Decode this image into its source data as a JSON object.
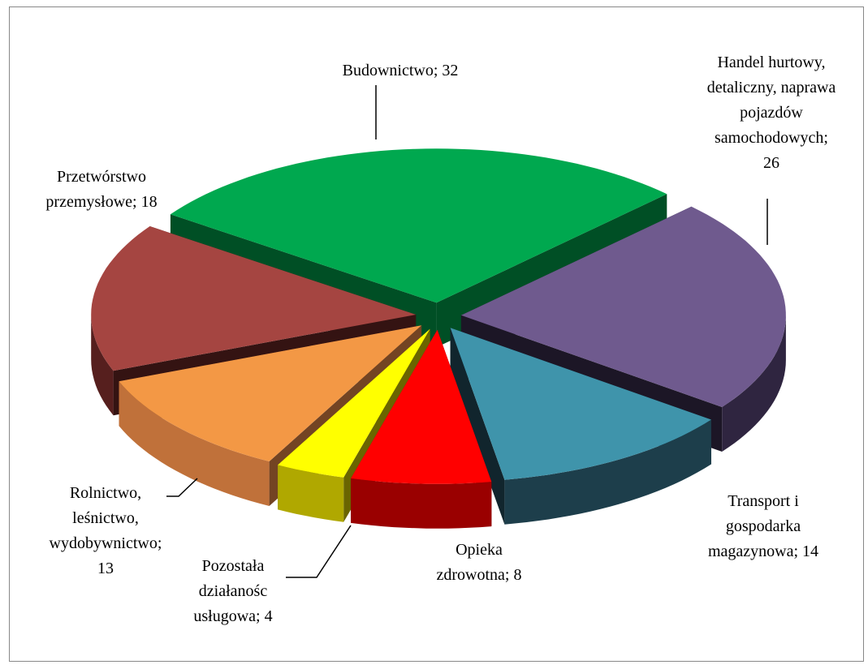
{
  "chart_data": {
    "type": "pie3d",
    "values": [
      32,
      26,
      14,
      8,
      4,
      13,
      18
    ],
    "value_labels": [
      "Budownictwo; 32",
      "Handel hurtowy, detaliczny, naprawa pojazdów samochodowych; 26",
      "Transport i gospodarka magazynowa; 14",
      "Opieka zdrowotna; 8",
      "Pozostała działanośc usługowa; 4",
      "Rolnictwo, leśnictwo, wydobywnictwo; 13",
      "Przetwórstwo przemysłowe; 18"
    ],
    "colors": [
      "#00a84f",
      "#6f5a8e",
      "#3f94ab",
      "#ff0000",
      "#ffff00",
      "#f39845",
      "#a54541"
    ],
    "side_colors": [
      "#00843e",
      "#2f2540",
      "#1d3e4b",
      "#9a0000",
      "#b0a800",
      "#c0713a",
      "#561f1e"
    ]
  }
}
